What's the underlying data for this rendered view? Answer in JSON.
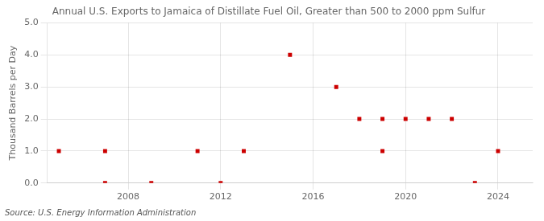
{
  "chart_data": {
    "type": "scatter",
    "title": "Annual U.S. Exports to Jamaica of Distillate Fuel Oil, Greater than 500 to 2000 ppm Sulfur",
    "ylabel": "Thousand Barrels per Day",
    "source": "Source: U.S. Energy Information Administration",
    "x": [
      2005,
      2007,
      2007,
      2009,
      2011,
      2012,
      2013,
      2015,
      2017,
      2018,
      2019,
      2019,
      2020,
      2021,
      2022,
      2023,
      2024
    ],
    "values": [
      1.0,
      1.0,
      0.0,
      0.0,
      1.0,
      0.0,
      1.0,
      4.0,
      3.0,
      2.0,
      2.0,
      1.0,
      2.0,
      2.0,
      2.0,
      0.0,
      1.0
    ],
    "color": "#cc0000",
    "marker": "square",
    "xlim": [
      2004.5,
      2025.5
    ],
    "xticks": [
      2008,
      2012,
      2016,
      2020,
      2024
    ],
    "ylim": [
      0.0,
      5.0
    ],
    "yticks": [
      {
        "value": 0.0,
        "label": "0.0"
      },
      {
        "value": 1.0,
        "label": "1.0"
      },
      {
        "value": 2.0,
        "label": "2.0"
      },
      {
        "value": 3.0,
        "label": "3.0"
      },
      {
        "value": 4.0,
        "label": "4.0"
      },
      {
        "value": 5.0,
        "label": "5.0"
      }
    ],
    "grid": true
  }
}
